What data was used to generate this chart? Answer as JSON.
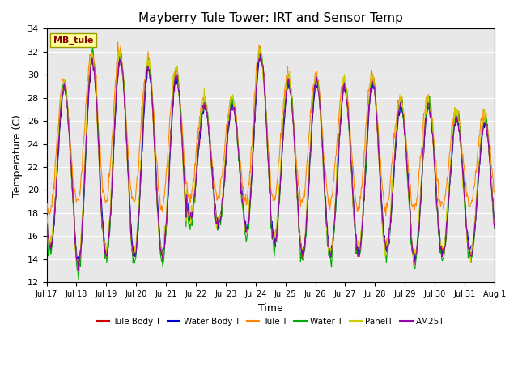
{
  "title": "Mayberry Tule Tower: IRT and Sensor Temp",
  "xlabel": "Time",
  "ylabel": "Temperature (C)",
  "ylim": [
    12,
    34
  ],
  "yticks": [
    12,
    14,
    16,
    18,
    20,
    22,
    24,
    26,
    28,
    30,
    32,
    34
  ],
  "x_tick_labels": [
    "Jul 17",
    "Jul 18",
    "Jul 19",
    "Jul 20",
    "Jul 21",
    "Jul 22",
    "Jul 23",
    "Jul 24",
    "Jul 25",
    "Jul 26",
    "Jul 27",
    "Jul 28",
    "Jul 29",
    "Jul 30",
    "Jul 31",
    "Aug 1"
  ],
  "station_label": "MB_tule",
  "bg_color": "#e8e8e8",
  "legend_entries": [
    {
      "label": "Tule Body T",
      "color": "#cc0000"
    },
    {
      "label": "Water Body T",
      "color": "#0000cc"
    },
    {
      "label": "Tule T",
      "color": "#ff8800"
    },
    {
      "label": "Water T",
      "color": "#00aa00"
    },
    {
      "label": "PanelT",
      "color": "#cccc00"
    },
    {
      "label": "AM25T",
      "color": "#9900aa"
    }
  ],
  "n_days": 16,
  "n_per_day": 48
}
